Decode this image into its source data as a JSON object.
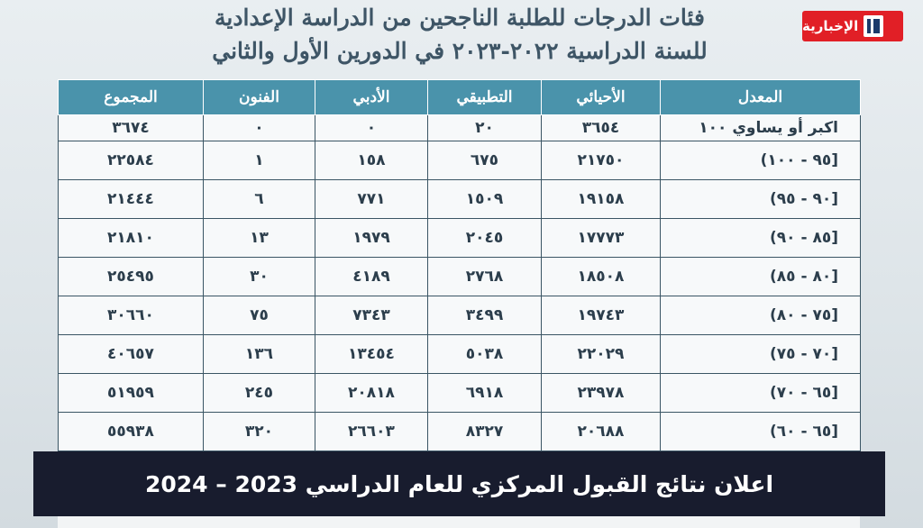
{
  "title": {
    "line1": "فئات الدرجات للطلبة الناجحين من الدراسة الإعدادية",
    "line2": "للسنة الدراسية ٢٠٢٢-٢٠٢٣ في الدورين الأول والثاني"
  },
  "logo": {
    "text": "الإخبارية",
    "icon": "channel-logo-icon",
    "color": "#e11f26"
  },
  "table": {
    "headers": [
      "المعدل",
      "الأحيائي",
      "التطبيقي",
      "الأدبي",
      "الفنون",
      "المجموع"
    ],
    "rows": [
      [
        "اكبر أو يساوي ١٠٠",
        "٣٦٥٤",
        "٢٠",
        "٠",
        "٠",
        "٣٦٧٤"
      ],
      [
        "[٩٥ - ١٠٠)",
        "٢١٧٥٠",
        "٦٧٥",
        "١٥٨",
        "١",
        "٢٢٥٨٤"
      ],
      [
        "[٩٠ - ٩٥)",
        "١٩١٥٨",
        "١٥٠٩",
        "٧٧١",
        "٦",
        "٢١٤٤٤"
      ],
      [
        "[٨٥ - ٩٠)",
        "١٧٧٧٣",
        "٢٠٤٥",
        "١٩٧٩",
        "١٣",
        "٢١٨١٠"
      ],
      [
        "[٨٠ - ٨٥)",
        "١٨٥٠٨",
        "٢٧٦٨",
        "٤١٨٩",
        "٣٠",
        "٢٥٤٩٥"
      ],
      [
        "[٧٥ - ٨٠)",
        "١٩٧٤٣",
        "٣٤٩٩",
        "٧٣٤٣",
        "٧٥",
        "٣٠٦٦٠"
      ],
      [
        "[٧٠ - ٧٥)",
        "٢٢٠٢٩",
        "٥٠٣٨",
        "١٣٤٥٤",
        "١٣٦",
        "٤٠٦٥٧"
      ],
      [
        "[٦٥ - ٧٠)",
        "٢٣٩٧٨",
        "٦٩١٨",
        "٢٠٨١٨",
        "٢٤٥",
        "٥١٩٥٩"
      ],
      [
        "[٦٥ - ٦٠)",
        "٢٠٦٨٨",
        "٨٣٢٧",
        "٢٦٦٠٣",
        "٣٢٠",
        "٥٥٩٣٨"
      ]
    ]
  },
  "banner": {
    "text": "اعلان نتائج القبول المركزي للعام الدراسي 2023 – 2024"
  },
  "colors": {
    "header_bg": "#4a93ab",
    "banner_bg": "#181c2e",
    "title": "#3e5566"
  }
}
